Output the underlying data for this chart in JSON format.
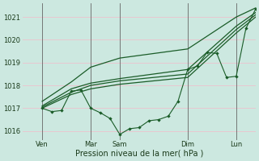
{
  "xlabel": "Pression niveau de la mer( hPa )",
  "bg_color": "#cce8e0",
  "grid_color": "#e8c8d0",
  "vline_color": "#666666",
  "line_color": "#1a5c28",
  "ylim": [
    1015.6,
    1021.6
  ],
  "yticks": [
    1016,
    1017,
    1018,
    1019,
    1020,
    1021
  ],
  "xlim": [
    0,
    24
  ],
  "xtick_vals": [
    2,
    7,
    10,
    17,
    22
  ],
  "xtick_labs": [
    "Ven",
    "Mar",
    "Sam",
    "Dim",
    "Lun"
  ],
  "vline_x": [
    2,
    7,
    10,
    17,
    22
  ],
  "hline_y": [
    1016,
    1017,
    1018,
    1019,
    1020,
    1021
  ],
  "line_detail": {
    "x": [
      2,
      3,
      4,
      5,
      6,
      7,
      8,
      9,
      10,
      11,
      12,
      13,
      14,
      15,
      16,
      17,
      18,
      19,
      20,
      21,
      22,
      23,
      24
    ],
    "y": [
      1017.0,
      1016.85,
      1016.9,
      1017.75,
      1017.8,
      1017.0,
      1016.8,
      1016.55,
      1015.85,
      1016.1,
      1016.15,
      1016.45,
      1016.5,
      1016.65,
      1017.3,
      1018.7,
      1018.85,
      1019.45,
      1019.4,
      1018.35,
      1018.4,
      1020.5,
      1021.35
    ]
  },
  "line_upper": {
    "x": [
      2,
      5,
      7,
      10,
      17,
      22,
      24
    ],
    "y": [
      1017.3,
      1018.15,
      1018.8,
      1019.2,
      1019.6,
      1021.0,
      1021.4
    ]
  },
  "line_mid1": {
    "x": [
      2,
      5,
      7,
      10,
      17,
      22,
      24
    ],
    "y": [
      1017.1,
      1017.85,
      1018.1,
      1018.3,
      1018.7,
      1020.6,
      1021.2
    ]
  },
  "line_mid2": {
    "x": [
      2,
      5,
      7,
      10,
      17,
      22,
      24
    ],
    "y": [
      1017.05,
      1017.7,
      1018.0,
      1018.2,
      1018.5,
      1020.45,
      1021.1
    ]
  },
  "line_lower": {
    "x": [
      2,
      5,
      7,
      10,
      17,
      22,
      24
    ],
    "y": [
      1017.0,
      1017.6,
      1017.85,
      1018.05,
      1018.35,
      1020.3,
      1021.0
    ]
  }
}
